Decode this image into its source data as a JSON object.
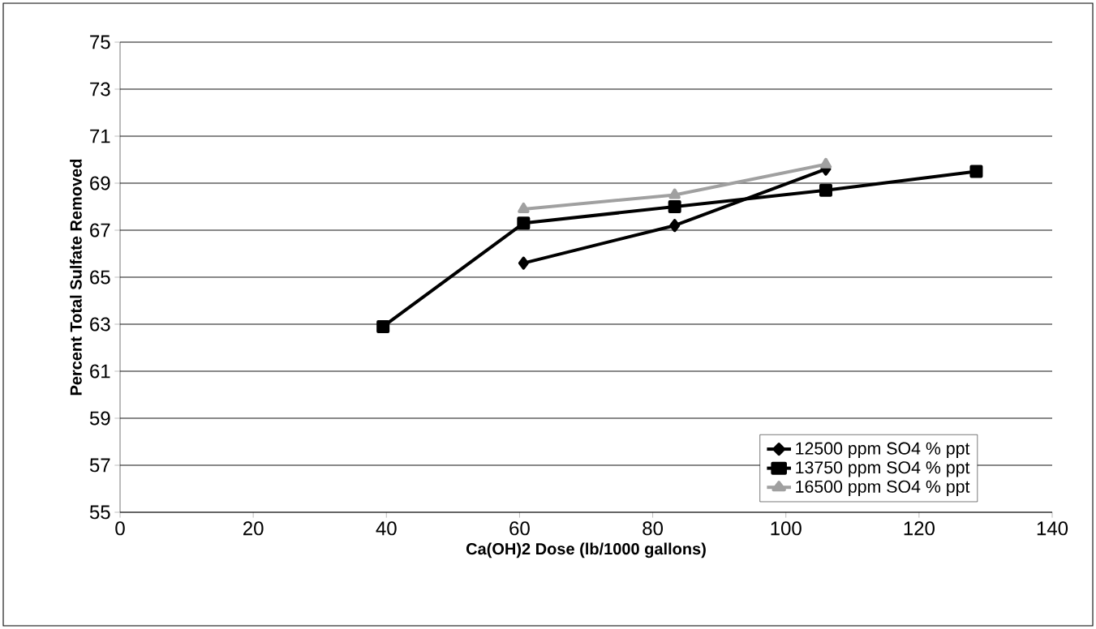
{
  "chart_data": {
    "type": "line",
    "xlabel": "Ca(OH)2 Dose (lb/1000 gallons)",
    "ylabel": "Percent Total Sulfate Removed",
    "xlim": [
      0,
      140
    ],
    "xticks": [
      0,
      20,
      40,
      60,
      80,
      100,
      120,
      140
    ],
    "ylim": [
      55,
      75
    ],
    "yticks": [
      55,
      57,
      59,
      61,
      63,
      65,
      67,
      69,
      71,
      73,
      75
    ],
    "grid": "y",
    "legend": "bottom right",
    "series": [
      {
        "name": "12500 ppm SO4 % ppt",
        "color": "#000000",
        "marker": "diamond",
        "x": [
          60.6,
          83.3,
          106.0
        ],
        "values": [
          65.6,
          67.2,
          69.6
        ]
      },
      {
        "name": "13750 ppm SO4 % ppt",
        "color": "#000000",
        "marker": "square",
        "x": [
          39.5,
          60.6,
          83.3,
          106.0,
          128.6
        ],
        "values": [
          62.9,
          67.3,
          68.0,
          68.7,
          69.5
        ]
      },
      {
        "name": "16500 ppm SO4  % ppt",
        "color": "#a0a0a0",
        "marker": "triangle",
        "x": [
          60.6,
          83.3,
          106.0
        ],
        "values": [
          67.9,
          68.5,
          69.8
        ]
      }
    ]
  }
}
